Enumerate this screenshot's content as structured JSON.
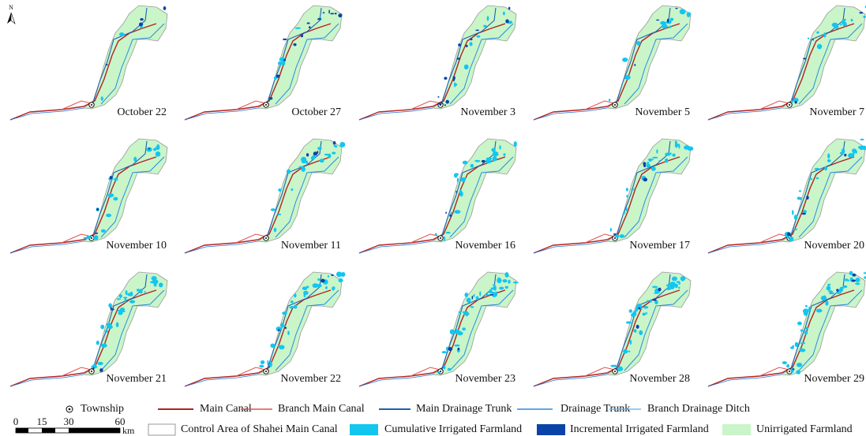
{
  "north": "N",
  "panels": [
    "October 22",
    "October 27",
    "November 3",
    "November 5",
    "November 7",
    "November 10",
    "November 11",
    "November 16",
    "November 17",
    "November 20",
    "November 21",
    "November 22",
    "November 23",
    "November 28",
    "November 29"
  ],
  "legend": {
    "row1": [
      "Township",
      "Main Canal",
      "Branch Main Canal",
      "Main Drainage Trunk",
      "Drainage Trunk",
      "Branch Drainage Ditch"
    ],
    "row2": [
      "Control Area of Shahei Main Canal",
      "Cumulative Irrigated Farmland",
      "Incremental Irrigated Farmland",
      "Unirrigated Farmland"
    ]
  },
  "scale_bar": {
    "labels": [
      "0",
      "15",
      "30",
      "60"
    ],
    "unit": "km"
  }
}
